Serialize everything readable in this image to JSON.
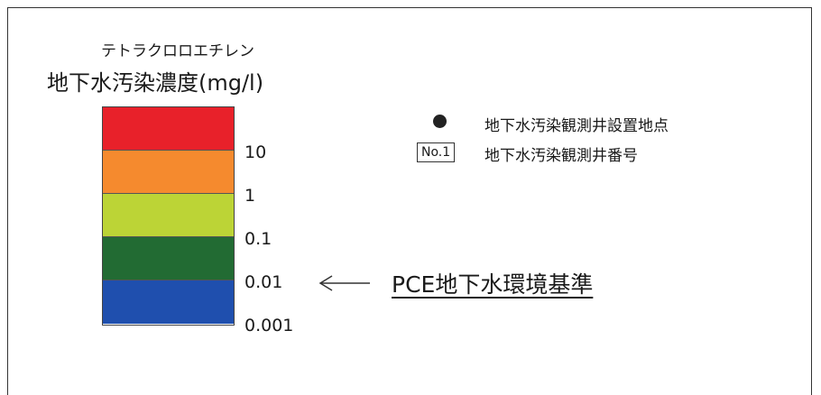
{
  "scale": {
    "title_line1": "テトラクロロエチレン",
    "title_line2": "地下水汚染濃度(mg/l)",
    "bands": [
      {
        "color": "#e8212a"
      },
      {
        "color": "#f58a2e"
      },
      {
        "color": "#bcd436"
      },
      {
        "color": "#226b33"
      },
      {
        "color": "#1f4fae"
      }
    ],
    "ticks": [
      "10",
      "1",
      "0.1",
      "0.01",
      "0.001"
    ]
  },
  "legend": {
    "point_label": "地下水汚染観測井設置地点",
    "number_box": "No.1",
    "number_label": "地下水汚染観測井番号"
  },
  "standard": {
    "label": "PCE地下水環境基準"
  }
}
